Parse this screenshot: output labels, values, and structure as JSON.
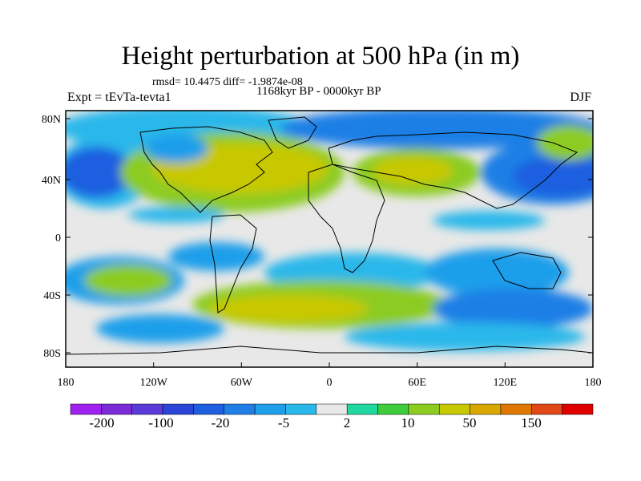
{
  "title": "Height perturbation at 500 hPa (in m)",
  "subtitle_stats": "rmsd= 10.4475 diff= -1.9874e-08",
  "subtitle_period": "1168kyr BP - 0000kyr BP",
  "experiment": "Expt = tEvTa-tevta1",
  "season": "DJF",
  "lat_ticks": [
    "80N",
    "40N",
    "0",
    "40S",
    "80S"
  ],
  "lon_ticks": [
    "180",
    "120W",
    "60W",
    "0",
    "60E",
    "120E",
    "180"
  ],
  "colorbar": {
    "colors": [
      "#a020f0",
      "#7b2bd6",
      "#5a3ad8",
      "#2a45d8",
      "#1e5fe0",
      "#1f7fe6",
      "#1f9fea",
      "#29b8ea",
      "#e8e8e8",
      "#20d8a0",
      "#3ccc3c",
      "#8ccc20",
      "#c8c800",
      "#d8a800",
      "#e07800",
      "#e04818",
      "#e00000"
    ],
    "labels": [
      "-200",
      "-100",
      "-20",
      "-5",
      "2",
      "10",
      "50",
      "150"
    ]
  }
}
